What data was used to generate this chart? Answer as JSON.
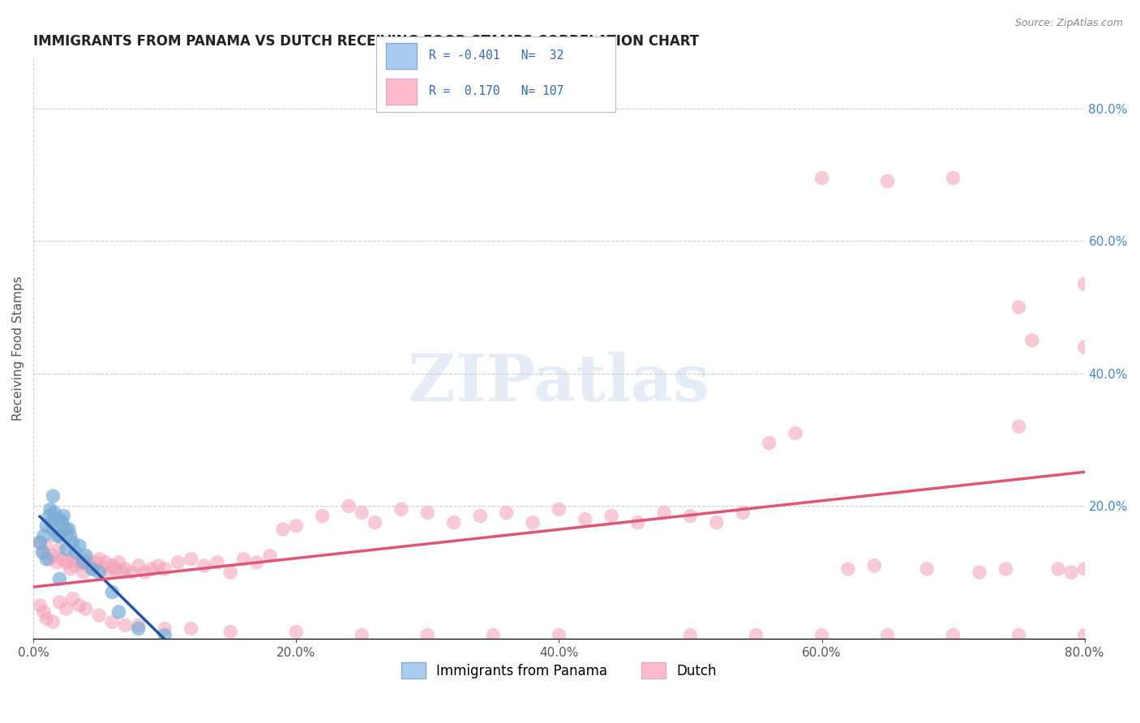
{
  "title": "IMMIGRANTS FROM PANAMA VS DUTCH RECEIVING FOOD STAMPS CORRELATION CHART",
  "source": "Source: ZipAtlas.com",
  "ylabel": "Receiving Food Stamps",
  "xlim": [
    0.0,
    0.8
  ],
  "ylim": [
    0.0,
    0.875
  ],
  "xticks": [
    0.0,
    0.2,
    0.4,
    0.6,
    0.8
  ],
  "xticklabels": [
    "0.0%",
    "20.0%",
    "40.0%",
    "60.0%",
    "80.0%"
  ],
  "yticks_right": [
    0.2,
    0.4,
    0.6,
    0.8
  ],
  "yticklabels_right": [
    "20.0%",
    "40.0%",
    "60.0%",
    "80.0%"
  ],
  "grid_color": "#cccccc",
  "background_color": "#ffffff",
  "watermark": "ZIPatlas",
  "blue_color": "#7aadd6",
  "pink_color": "#f4a0b5",
  "blue_line_color": "#2255aa",
  "pink_line_color": "#e05575",
  "panama_x": [
    0.005,
    0.007,
    0.008,
    0.01,
    0.01,
    0.012,
    0.013,
    0.014,
    0.015,
    0.015,
    0.016,
    0.018,
    0.02,
    0.02,
    0.02,
    0.022,
    0.023,
    0.025,
    0.025,
    0.027,
    0.028,
    0.03,
    0.032,
    0.035,
    0.038,
    0.04,
    0.045,
    0.05,
    0.06,
    0.065,
    0.08,
    0.1
  ],
  "panama_y": [
    0.145,
    0.13,
    0.155,
    0.17,
    0.12,
    0.185,
    0.195,
    0.175,
    0.215,
    0.165,
    0.19,
    0.155,
    0.18,
    0.155,
    0.09,
    0.175,
    0.185,
    0.165,
    0.135,
    0.165,
    0.155,
    0.145,
    0.13,
    0.14,
    0.115,
    0.125,
    0.105,
    0.1,
    0.07,
    0.04,
    0.015,
    0.005
  ],
  "dutch_x": [
    0.005,
    0.008,
    0.01,
    0.012,
    0.015,
    0.018,
    0.02,
    0.022,
    0.025,
    0.028,
    0.03,
    0.032,
    0.035,
    0.038,
    0.04,
    0.042,
    0.045,
    0.048,
    0.05,
    0.052,
    0.055,
    0.058,
    0.06,
    0.062,
    0.065,
    0.068,
    0.07,
    0.075,
    0.08,
    0.085,
    0.09,
    0.095,
    0.1,
    0.11,
    0.12,
    0.13,
    0.14,
    0.15,
    0.16,
    0.17,
    0.18,
    0.19,
    0.2,
    0.22,
    0.24,
    0.25,
    0.26,
    0.28,
    0.3,
    0.32,
    0.34,
    0.36,
    0.38,
    0.4,
    0.42,
    0.44,
    0.46,
    0.48,
    0.5,
    0.52,
    0.54,
    0.56,
    0.58,
    0.6,
    0.62,
    0.64,
    0.65,
    0.68,
    0.7,
    0.72,
    0.74,
    0.75,
    0.76,
    0.78,
    0.79,
    0.8,
    0.005,
    0.008,
    0.01,
    0.015,
    0.02,
    0.025,
    0.03,
    0.035,
    0.04,
    0.05,
    0.06,
    0.07,
    0.08,
    0.1,
    0.12,
    0.15,
    0.2,
    0.25,
    0.3,
    0.35,
    0.4,
    0.5,
    0.55,
    0.6,
    0.65,
    0.7,
    0.75,
    0.8,
    0.8,
    0.8,
    0.75
  ],
  "dutch_y": [
    0.145,
    0.13,
    0.14,
    0.12,
    0.125,
    0.115,
    0.135,
    0.12,
    0.115,
    0.105,
    0.12,
    0.11,
    0.115,
    0.1,
    0.12,
    0.11,
    0.105,
    0.115,
    0.12,
    0.105,
    0.115,
    0.1,
    0.11,
    0.105,
    0.115,
    0.1,
    0.105,
    0.1,
    0.11,
    0.1,
    0.105,
    0.11,
    0.105,
    0.115,
    0.12,
    0.11,
    0.115,
    0.1,
    0.12,
    0.115,
    0.125,
    0.165,
    0.17,
    0.185,
    0.2,
    0.19,
    0.175,
    0.195,
    0.19,
    0.175,
    0.185,
    0.19,
    0.175,
    0.195,
    0.18,
    0.185,
    0.175,
    0.19,
    0.185,
    0.175,
    0.19,
    0.295,
    0.31,
    0.695,
    0.105,
    0.11,
    0.69,
    0.105,
    0.695,
    0.1,
    0.105,
    0.5,
    0.45,
    0.105,
    0.1,
    0.105,
    0.05,
    0.04,
    0.03,
    0.025,
    0.055,
    0.045,
    0.06,
    0.05,
    0.045,
    0.035,
    0.025,
    0.02,
    0.02,
    0.015,
    0.015,
    0.01,
    0.01,
    0.005,
    0.005,
    0.005,
    0.005,
    0.005,
    0.005,
    0.005,
    0.005,
    0.005,
    0.005,
    0.005,
    0.44,
    0.535,
    0.32
  ]
}
